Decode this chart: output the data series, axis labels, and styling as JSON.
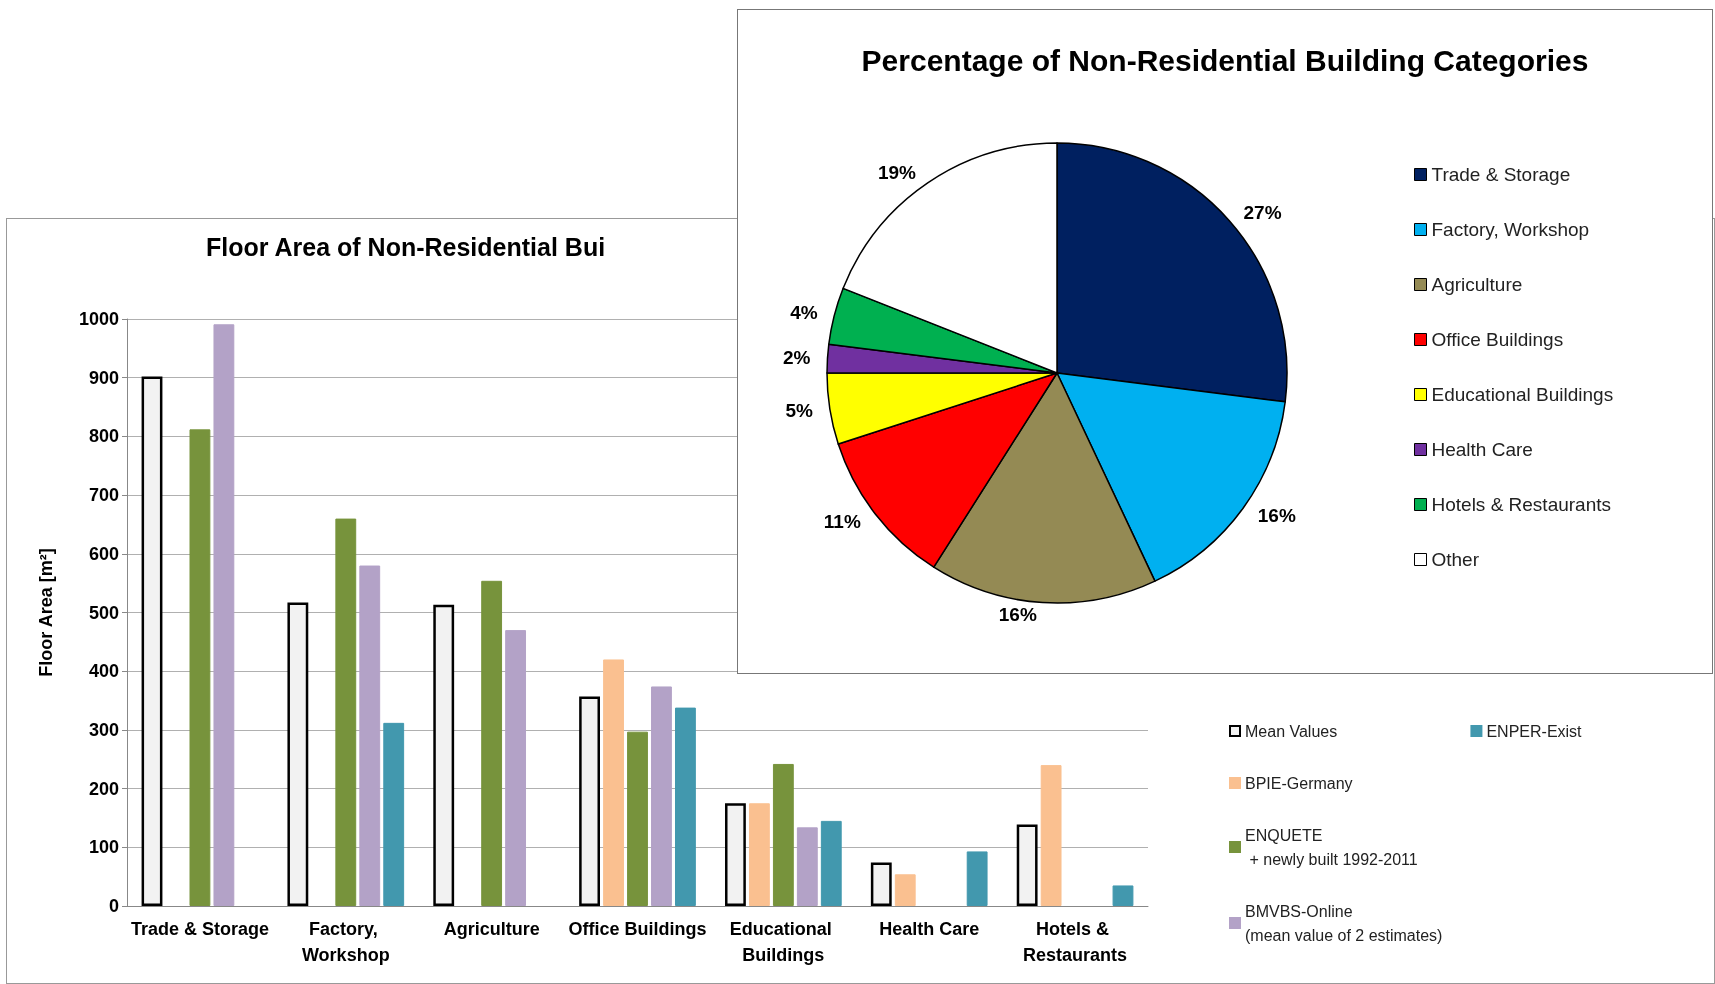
{
  "chart_data": [
    {
      "type": "bar",
      "title": "Floor Area of Non-Residential Bui",
      "ylabel": "Floor Area [m²]",
      "categories": [
        "Trade & Storage",
        "Factory, Workshop",
        "Agriculture",
        "Office Buildings",
        "Educational Buildings",
        "Health Care",
        "Hotels & Restaurants"
      ],
      "series": [
        {
          "name": "Mean Values",
          "color": "#f2f2f2",
          "values": [
            902,
            517,
            513,
            357,
            175,
            74,
            139
          ]
        },
        {
          "name": "BPIE-Germany",
          "color": "#fac090",
          "values": [
            null,
            null,
            null,
            420,
            175,
            54,
            240
          ]
        },
        {
          "name": "ENQUETE\n + newly built 1992-2011",
          "color": "#77933c",
          "values": [
            812,
            660,
            554,
            297,
            242,
            null,
            null
          ]
        },
        {
          "name": "BMVBS-Online\n(mean value of 2 estimates)",
          "color": "#b3a2c7",
          "values": [
            991,
            580,
            470,
            374,
            134,
            null,
            null
          ]
        },
        {
          "name": "ENPER-Exist",
          "color": "#4298ae",
          "values": [
            null,
            312,
            null,
            338,
            145,
            93,
            35
          ]
        }
      ],
      "ylim": [
        0,
        1000
      ],
      "yticks": [
        0,
        100,
        200,
        300,
        400,
        500,
        600,
        700,
        800,
        900,
        1000
      ],
      "grid": "y",
      "legend": "right"
    },
    {
      "type": "pie",
      "title": "Percentage of Non-Residential Building Categories",
      "categories": [
        "Trade & Storage",
        "Factory, Workshop",
        "Agriculture",
        "Office Buildings",
        "Educational Buildings",
        "Health Care",
        "Hotels & Restaurants",
        "Other"
      ],
      "values": [
        27,
        16,
        16,
        11,
        5,
        2,
        4,
        19
      ],
      "colors": [
        "#002060",
        "#00b0f0",
        "#948a54",
        "#ff0000",
        "#ffff00",
        "#7030a0",
        "#00b050",
        "#ffffff"
      ],
      "value_labels": [
        "27%",
        "16%",
        "16%",
        "11%",
        "5%",
        "2%",
        "4%",
        "19%"
      ],
      "legend": "right"
    }
  ]
}
